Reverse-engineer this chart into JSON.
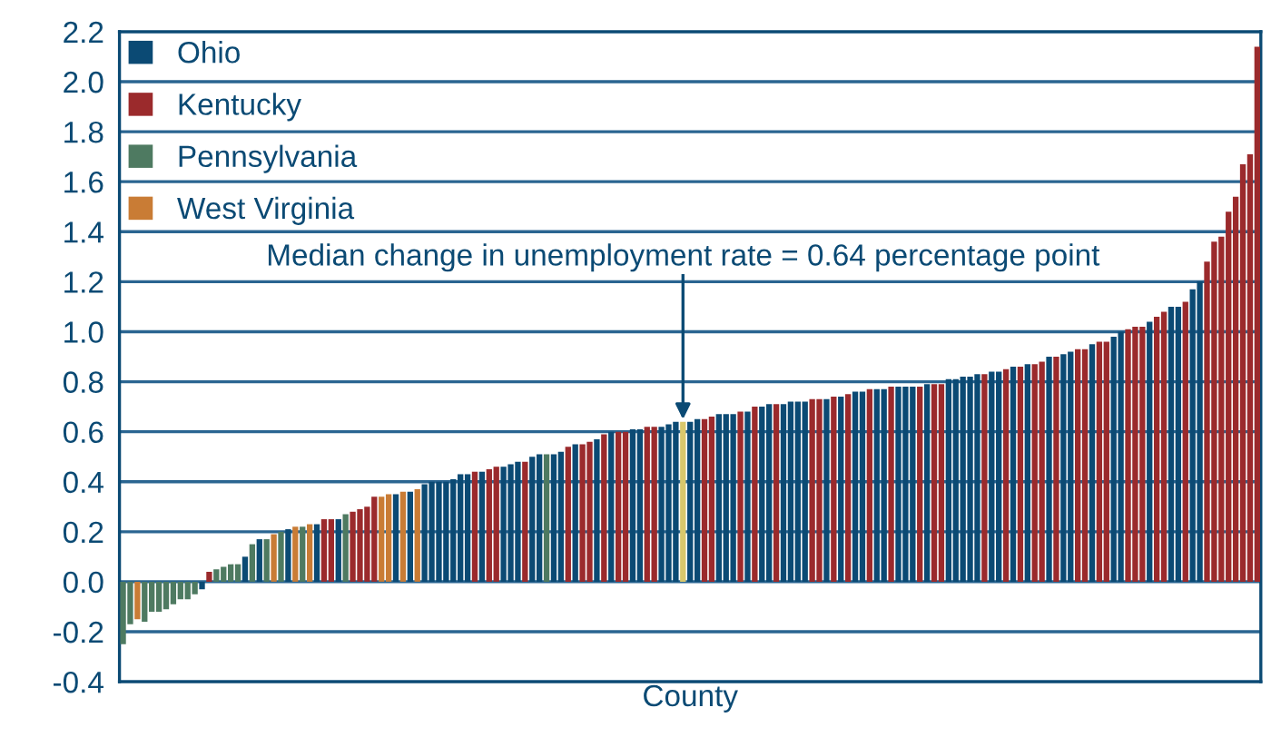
{
  "chart_data": {
    "type": "bar",
    "xlabel": "County",
    "categories": [
      null,
      null,
      null,
      null,
      null,
      null,
      null,
      null,
      null,
      null,
      null,
      null,
      null,
      null,
      null,
      null,
      null,
      null,
      null,
      null,
      null,
      null,
      null,
      null,
      null,
      null,
      null,
      null,
      null,
      null,
      null,
      null,
      null,
      null,
      null,
      null,
      null,
      null,
      null,
      null,
      null,
      null,
      null,
      null,
      null,
      null,
      null,
      null,
      null,
      null,
      null,
      null,
      null,
      null,
      null,
      null,
      null,
      null,
      null,
      null,
      null,
      null,
      null,
      null,
      null,
      null,
      null,
      null,
      null,
      null,
      null,
      null,
      null,
      null,
      null,
      null,
      null,
      null,
      null,
      null,
      null,
      null,
      null,
      null,
      null,
      null,
      null,
      null,
      null,
      null,
      null,
      null,
      null,
      null,
      null,
      null,
      null,
      null,
      null,
      null,
      null,
      null,
      null,
      null,
      null,
      null,
      null,
      null,
      null,
      null,
      null,
      null,
      null,
      null,
      null,
      null,
      null,
      null,
      null,
      null,
      null,
      null,
      null,
      null,
      null,
      null,
      null,
      null,
      null,
      null,
      null,
      null,
      null,
      null,
      null,
      null,
      null,
      null,
      null,
      null,
      null,
      null,
      null,
      null,
      null,
      null,
      null,
      null,
      null,
      null,
      null,
      null,
      null,
      null,
      null,
      null,
      null,
      null,
      null
    ],
    "series": [
      {
        "name": "Ohio",
        "color": "#0b4a74",
        "values": [
          null,
          null,
          null,
          null,
          null,
          null,
          null,
          null,
          null,
          null,
          null,
          -0.03,
          null,
          null,
          null,
          null,
          null,
          0.1,
          null,
          0.17,
          null,
          null,
          null,
          0.21,
          null,
          null,
          null,
          0.23,
          null,
          null,
          0.25,
          null,
          null,
          null,
          null,
          null,
          null,
          null,
          0.35,
          null,
          0.36,
          null,
          0.39,
          0.4,
          0.4,
          0.4,
          0.41,
          0.43,
          0.43,
          null,
          0.44,
          null,
          null,
          0.46,
          0.47,
          0.48,
          null,
          0.5,
          0.51,
          null,
          0.51,
          0.52,
          null,
          0.55,
          null,
          null,
          0.57,
          null,
          0.6,
          null,
          null,
          0.61,
          0.61,
          null,
          null,
          0.62,
          0.63,
          0.64,
          null,
          0.64,
          0.65,
          null,
          null,
          0.67,
          0.67,
          0.67,
          null,
          0.68,
          null,
          0.7,
          0.71,
          null,
          0.71,
          0.72,
          0.72,
          0.72,
          null,
          null,
          0.73,
          null,
          0.74,
          null,
          0.76,
          0.76,
          null,
          0.77,
          0.77,
          null,
          0.78,
          0.78,
          0.78,
          null,
          0.79,
          null,
          null,
          0.81,
          0.81,
          0.82,
          0.82,
          0.83,
          null,
          0.84,
          0.84,
          null,
          0.86,
          null,
          0.87,
          null,
          null,
          0.9,
          null,
          0.91,
          0.92,
          null,
          null,
          0.95,
          null,
          null,
          0.98,
          1.0,
          null,
          null,
          null,
          1.04,
          null,
          null,
          1.1,
          1.1,
          null,
          1.17,
          1.2,
          null,
          null,
          null,
          null,
          null,
          null,
          null,
          null
        ]
      },
      {
        "name": "Kentucky",
        "color": "#9b2a2c",
        "values": [
          null,
          null,
          null,
          null,
          null,
          null,
          null,
          null,
          null,
          null,
          null,
          null,
          0.04,
          null,
          null,
          null,
          null,
          null,
          null,
          null,
          null,
          null,
          null,
          null,
          null,
          null,
          null,
          null,
          0.25,
          0.25,
          null,
          null,
          0.28,
          0.29,
          0.3,
          0.34,
          null,
          null,
          null,
          null,
          null,
          null,
          null,
          null,
          null,
          null,
          null,
          null,
          null,
          0.44,
          null,
          0.45,
          0.46,
          null,
          null,
          null,
          0.48,
          null,
          null,
          null,
          null,
          null,
          0.54,
          null,
          0.55,
          0.56,
          null,
          0.59,
          null,
          0.6,
          0.6,
          null,
          null,
          0.62,
          0.62,
          null,
          null,
          null,
          null,
          null,
          null,
          0.65,
          0.66,
          null,
          null,
          null,
          0.68,
          null,
          0.7,
          null,
          null,
          0.71,
          null,
          null,
          null,
          null,
          0.73,
          0.73,
          null,
          0.74,
          null,
          0.75,
          null,
          null,
          0.77,
          null,
          null,
          0.78,
          null,
          null,
          null,
          0.78,
          null,
          0.79,
          0.79,
          null,
          null,
          null,
          null,
          null,
          0.83,
          null,
          null,
          0.85,
          null,
          0.86,
          null,
          0.87,
          0.88,
          null,
          0.9,
          null,
          null,
          0.93,
          0.93,
          null,
          0.96,
          0.96,
          null,
          null,
          1.01,
          1.02,
          1.02,
          null,
          1.06,
          1.08,
          null,
          null,
          1.12,
          null,
          null,
          1.28,
          1.36,
          1.38,
          1.48,
          1.54,
          1.67,
          1.71,
          2.14
        ]
      },
      {
        "name": "Pennsylvania",
        "color": "#4e7a61",
        "values": [
          -0.25,
          -0.17,
          null,
          -0.16,
          -0.12,
          -0.12,
          -0.11,
          -0.09,
          -0.07,
          -0.07,
          -0.05,
          null,
          null,
          0.05,
          0.06,
          0.07,
          0.07,
          null,
          0.15,
          null,
          0.17,
          null,
          0.2,
          null,
          null,
          0.22,
          null,
          null,
          null,
          null,
          null,
          0.27,
          null,
          null,
          null,
          null,
          null,
          null,
          null,
          null,
          null,
          null,
          null,
          null,
          null,
          null,
          null,
          null,
          null,
          null,
          null,
          null,
          null,
          null,
          null,
          null,
          null,
          null,
          null,
          0.51,
          null,
          null,
          null,
          null,
          null,
          null,
          null,
          null,
          null,
          null,
          null,
          null,
          null,
          null,
          null,
          null,
          null,
          null,
          null,
          null,
          null,
          null,
          null,
          null,
          null,
          null,
          null,
          null,
          null,
          null,
          null,
          null,
          null,
          null,
          null,
          null,
          null,
          null,
          null,
          null,
          null,
          null,
          null,
          null,
          null,
          null,
          null,
          null,
          null,
          null,
          null,
          null,
          null,
          null,
          null,
          null,
          null,
          null,
          null,
          null,
          null,
          null,
          null,
          null,
          null,
          null,
          null,
          null,
          null,
          null,
          null,
          null,
          null,
          null,
          null,
          null,
          null,
          null,
          null,
          null,
          null,
          null,
          null,
          null,
          null,
          null,
          null,
          null,
          null,
          null,
          null,
          null,
          null,
          null,
          null,
          null,
          null,
          null,
          null
        ]
      },
      {
        "name": "West Virginia",
        "color": "#c97c35",
        "values": [
          null,
          null,
          -0.15,
          null,
          null,
          null,
          null,
          null,
          null,
          null,
          null,
          null,
          null,
          null,
          null,
          null,
          null,
          null,
          null,
          null,
          null,
          0.19,
          null,
          null,
          0.22,
          null,
          0.23,
          null,
          null,
          null,
          null,
          null,
          null,
          null,
          null,
          null,
          0.34,
          0.35,
          null,
          0.36,
          null,
          0.37,
          null,
          null,
          null,
          null,
          null,
          null,
          null,
          null,
          null,
          null,
          null,
          null,
          null,
          null,
          null,
          null,
          null,
          null,
          null,
          null,
          null,
          null,
          null,
          null,
          null,
          null,
          null,
          null,
          null,
          null,
          null,
          null,
          null,
          null,
          null,
          null,
          null,
          null,
          null,
          null,
          null,
          null,
          null,
          null,
          null,
          null,
          null,
          null,
          null,
          null,
          null,
          null,
          null,
          null,
          null,
          null,
          null,
          null,
          null,
          null,
          null,
          null,
          null,
          null,
          null,
          null,
          null,
          null,
          null,
          null,
          null,
          null,
          null,
          null,
          null,
          null,
          null,
          null,
          null,
          null,
          null,
          null,
          null,
          null,
          null,
          null,
          null,
          null,
          null,
          null,
          null,
          null,
          null,
          null,
          null,
          null,
          null,
          null,
          null,
          null,
          null,
          null,
          null,
          null,
          null,
          null,
          null,
          null,
          null,
          null,
          null,
          null,
          null,
          null,
          null,
          null,
          null
        ]
      },
      {
        "color": "#d9c86c",
        "values": [
          null,
          null,
          null,
          null,
          null,
          null,
          null,
          null,
          null,
          null,
          null,
          null,
          null,
          null,
          null,
          null,
          null,
          null,
          null,
          null,
          null,
          null,
          null,
          null,
          null,
          null,
          null,
          null,
          null,
          null,
          null,
          null,
          null,
          null,
          null,
          null,
          null,
          null,
          null,
          null,
          null,
          null,
          null,
          null,
          null,
          null,
          null,
          null,
          null,
          null,
          null,
          null,
          null,
          null,
          null,
          null,
          null,
          null,
          null,
          null,
          null,
          null,
          null,
          null,
          null,
          null,
          null,
          null,
          null,
          null,
          null,
          null,
          null,
          null,
          null,
          null,
          null,
          null,
          0.64,
          null,
          null,
          null,
          null,
          null,
          null,
          null,
          null,
          null,
          null,
          null,
          null,
          null,
          null,
          null,
          null,
          null,
          null,
          null,
          null,
          null,
          null,
          null,
          null,
          null,
          null,
          null,
          null,
          null,
          null,
          null,
          null,
          null,
          null,
          null,
          null,
          null,
          null,
          null,
          null,
          null,
          null,
          null,
          null,
          null,
          null,
          null,
          null,
          null,
          null,
          null,
          null,
          null,
          null,
          null,
          null,
          null,
          null,
          null,
          null,
          null,
          null,
          null,
          null,
          null,
          null,
          null,
          null,
          null,
          null,
          null,
          null,
          null,
          null,
          null,
          null,
          null,
          null,
          null,
          null
        ]
      }
    ],
    "ylim": [
      -0.4,
      2.2
    ],
    "yticks": [
      {
        "value": -0.4,
        "label": "-0.4"
      },
      {
        "value": -0.2,
        "label": "-0.2"
      },
      {
        "value": 0,
        "label": "0.0"
      },
      0.2,
      0.4,
      0.6,
      0.8,
      {
        "value": 1,
        "label": "1.0"
      },
      1.2,
      1.4,
      1.6,
      1.8,
      {
        "value": 2,
        "label": "2.0"
      },
      2.2
    ],
    "grid": "y",
    "legend": "top left",
    "tick_labels": "y",
    "annotations": [
      {
        "text": "Median change in unemployment rate = 0.64 percentage point",
        "y": 0.64
      }
    ]
  }
}
